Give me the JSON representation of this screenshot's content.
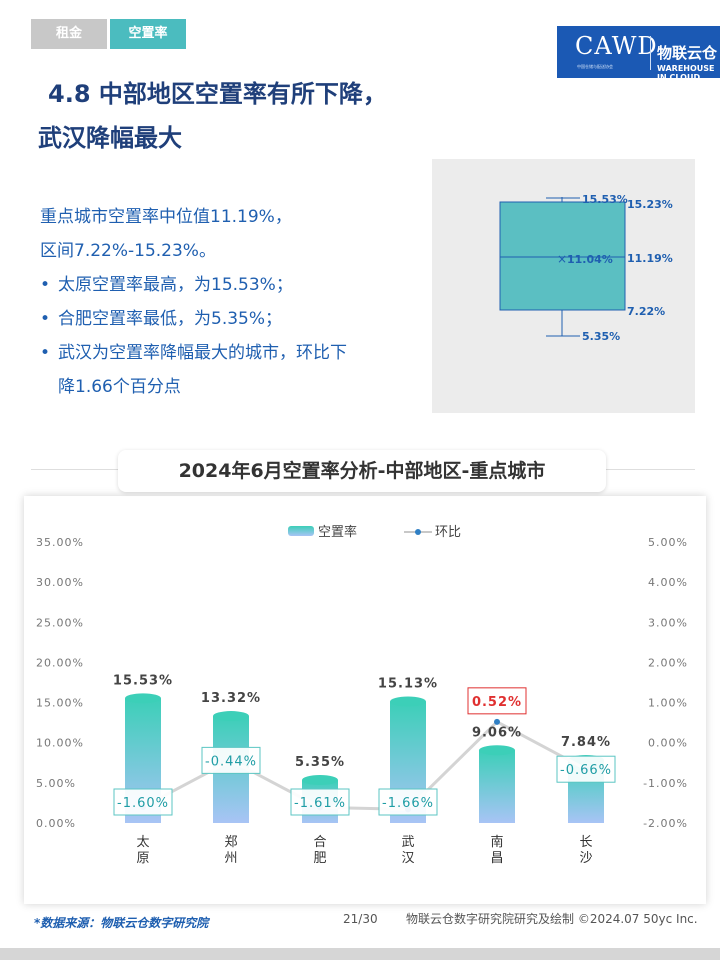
{
  "header": {
    "tabs": [
      {
        "label": "租金"
      },
      {
        "label": "空置率"
      }
    ],
    "logo": {
      "text": "CAWD",
      "cn": "物联云仓",
      "en": "WAREHOUSE IN CLOUD",
      "sub": "中国仓储与配送协会"
    }
  },
  "title": {
    "line1": "4.8 中部地区空置率有所下降，",
    "line2": "武汉降幅最大"
  },
  "summary": {
    "line1": "重点城市空置率中位值11.19%，",
    "line2": "区间7.22%-15.23%。",
    "bullets": [
      {
        "text": "太原空置率最高，为15.53%；"
      },
      {
        "text": "合肥空置率最低，为5.35%；"
      },
      {
        "text": "武汉为空置率降幅最大的城市，环比下",
        "cont": "降1.66个百分点"
      }
    ]
  },
  "boxplot": {
    "max": "15.53%",
    "q3": "15.23%",
    "mean": "11.04%",
    "median": "11.19%",
    "q1": "7.22%",
    "min": "5.35%",
    "values": {
      "max": 15.53,
      "q3": 15.23,
      "mean": 11.04,
      "median": 11.19,
      "q1": 7.22,
      "min": 5.35
    }
  },
  "chart_title": "2024年6月空置率分析-中部地区-重点城市",
  "chart_data": {
    "type": "bar",
    "categories": [
      "太原",
      "郑州",
      "合肥",
      "武汉",
      "南昌",
      "长沙"
    ],
    "series": [
      {
        "name": "空置率",
        "type": "bar",
        "axis": "left",
        "values": [
          15.53,
          13.32,
          5.35,
          15.13,
          9.06,
          7.84
        ],
        "labels": [
          "15.53%",
          "13.32%",
          "5.35%",
          "15.13%",
          "9.06%",
          "7.84%"
        ]
      },
      {
        "name": "环比",
        "type": "line",
        "axis": "right",
        "values": [
          -1.6,
          -0.44,
          -1.61,
          -1.66,
          0.52,
          -0.66
        ],
        "labels": [
          "-1.60%",
          "-0.44%",
          "-1.61%",
          "-1.66%",
          "0.52%",
          "-0.66%"
        ]
      }
    ],
    "y_left": {
      "ylim": [
        0,
        35
      ],
      "ticks": [
        "0.00%",
        "5.00%",
        "10.00%",
        "15.00%",
        "20.00%",
        "25.00%",
        "30.00%",
        "35.00%"
      ]
    },
    "y_right": {
      "ylim": [
        -2,
        5
      ],
      "ticks": [
        "-2.00%",
        "-1.00%",
        "0.00%",
        "1.00%",
        "2.00%",
        "3.00%",
        "4.00%",
        "5.00%"
      ]
    },
    "legend": "top-center",
    "colors": {
      "bar_top": "#3ccfb8",
      "bar_bottom": "#a8c4f5",
      "line": "#d4d4d4",
      "point": "#2f7fc4",
      "label_border": "#5bc6c3",
      "label_text": "#1f9da5",
      "positive_border": "#e03030",
      "positive_text": "#e03030"
    }
  },
  "footer": {
    "source": "*数据来源：物联云仓数字研究院",
    "page": "21/30",
    "credit": "物联云仓数字研究院研究及绘制  ©2024.07 50yc Inc."
  }
}
